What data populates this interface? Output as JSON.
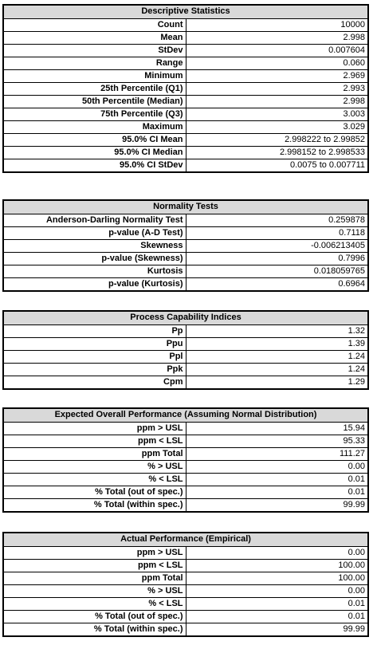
{
  "sections": [
    {
      "title": "Descriptive Statistics",
      "rows": [
        {
          "label": "Count",
          "value": "10000"
        },
        {
          "label": "Mean",
          "value": "2.998"
        },
        {
          "label": "StDev",
          "value": "0.007604"
        },
        {
          "label": "Range",
          "value": "0.060"
        },
        {
          "label": "Minimum",
          "value": "2.969"
        },
        {
          "label": "25th Percentile (Q1)",
          "value": "2.993"
        },
        {
          "label": "50th Percentile (Median)",
          "value": "2.998"
        },
        {
          "label": "75th Percentile (Q3)",
          "value": "3.003"
        },
        {
          "label": "Maximum",
          "value": "3.029"
        },
        {
          "label": "95.0% CI Mean",
          "value": "2.998222 to 2.99852"
        },
        {
          "label": "95.0% CI Median",
          "value": "2.998152 to 2.998533"
        },
        {
          "label": "95.0% CI StDev",
          "value": "0.0075 to 0.007711"
        }
      ]
    },
    {
      "title": "Normality Tests",
      "rows": [
        {
          "label": "Anderson-Darling Normality Test",
          "value": "0.259878"
        },
        {
          "label": "p-value (A-D Test)",
          "value": "0.7118"
        },
        {
          "label": "Skewness",
          "value": "-0.006213405"
        },
        {
          "label": "p-value (Skewness)",
          "value": "0.7996"
        },
        {
          "label": "Kurtosis",
          "value": "0.018059765"
        },
        {
          "label": "p-value (Kurtosis)",
          "value": "0.6964"
        }
      ]
    },
    {
      "title": "Process Capability Indices",
      "rows": [
        {
          "label": "Pp",
          "value": "1.32"
        },
        {
          "label": "Ppu",
          "value": "1.39"
        },
        {
          "label": "Ppl",
          "value": "1.24"
        },
        {
          "label": "Ppk",
          "value": "1.24"
        },
        {
          "label": "Cpm",
          "value": "1.29"
        }
      ]
    },
    {
      "title": "Expected Overall Performance (Assuming Normal Distribution)",
      "rows": [
        {
          "label": "ppm > USL",
          "value": "15.94"
        },
        {
          "label": "ppm < LSL",
          "value": "95.33"
        },
        {
          "label": "ppm Total",
          "value": "111.27"
        },
        {
          "label": "% > USL",
          "value": "0.00"
        },
        {
          "label": "% < LSL",
          "value": "0.01"
        },
        {
          "label": "% Total (out of spec.)",
          "value": "0.01"
        },
        {
          "label": "% Total  (within spec.)",
          "value": "99.99"
        }
      ]
    },
    {
      "title": "Actual Performance (Empirical)",
      "rows": [
        {
          "label": "ppm > USL",
          "value": "0.00"
        },
        {
          "label": "ppm < LSL",
          "value": "100.00"
        },
        {
          "label": "ppm Total",
          "value": "100.00"
        },
        {
          "label": "% > USL",
          "value": "0.00"
        },
        {
          "label": "% < LSL",
          "value": "0.01"
        },
        {
          "label": "% Total (out of spec.)",
          "value": "0.01"
        },
        {
          "label": "% Total (within spec.)",
          "value": "99.99"
        }
      ]
    }
  ]
}
